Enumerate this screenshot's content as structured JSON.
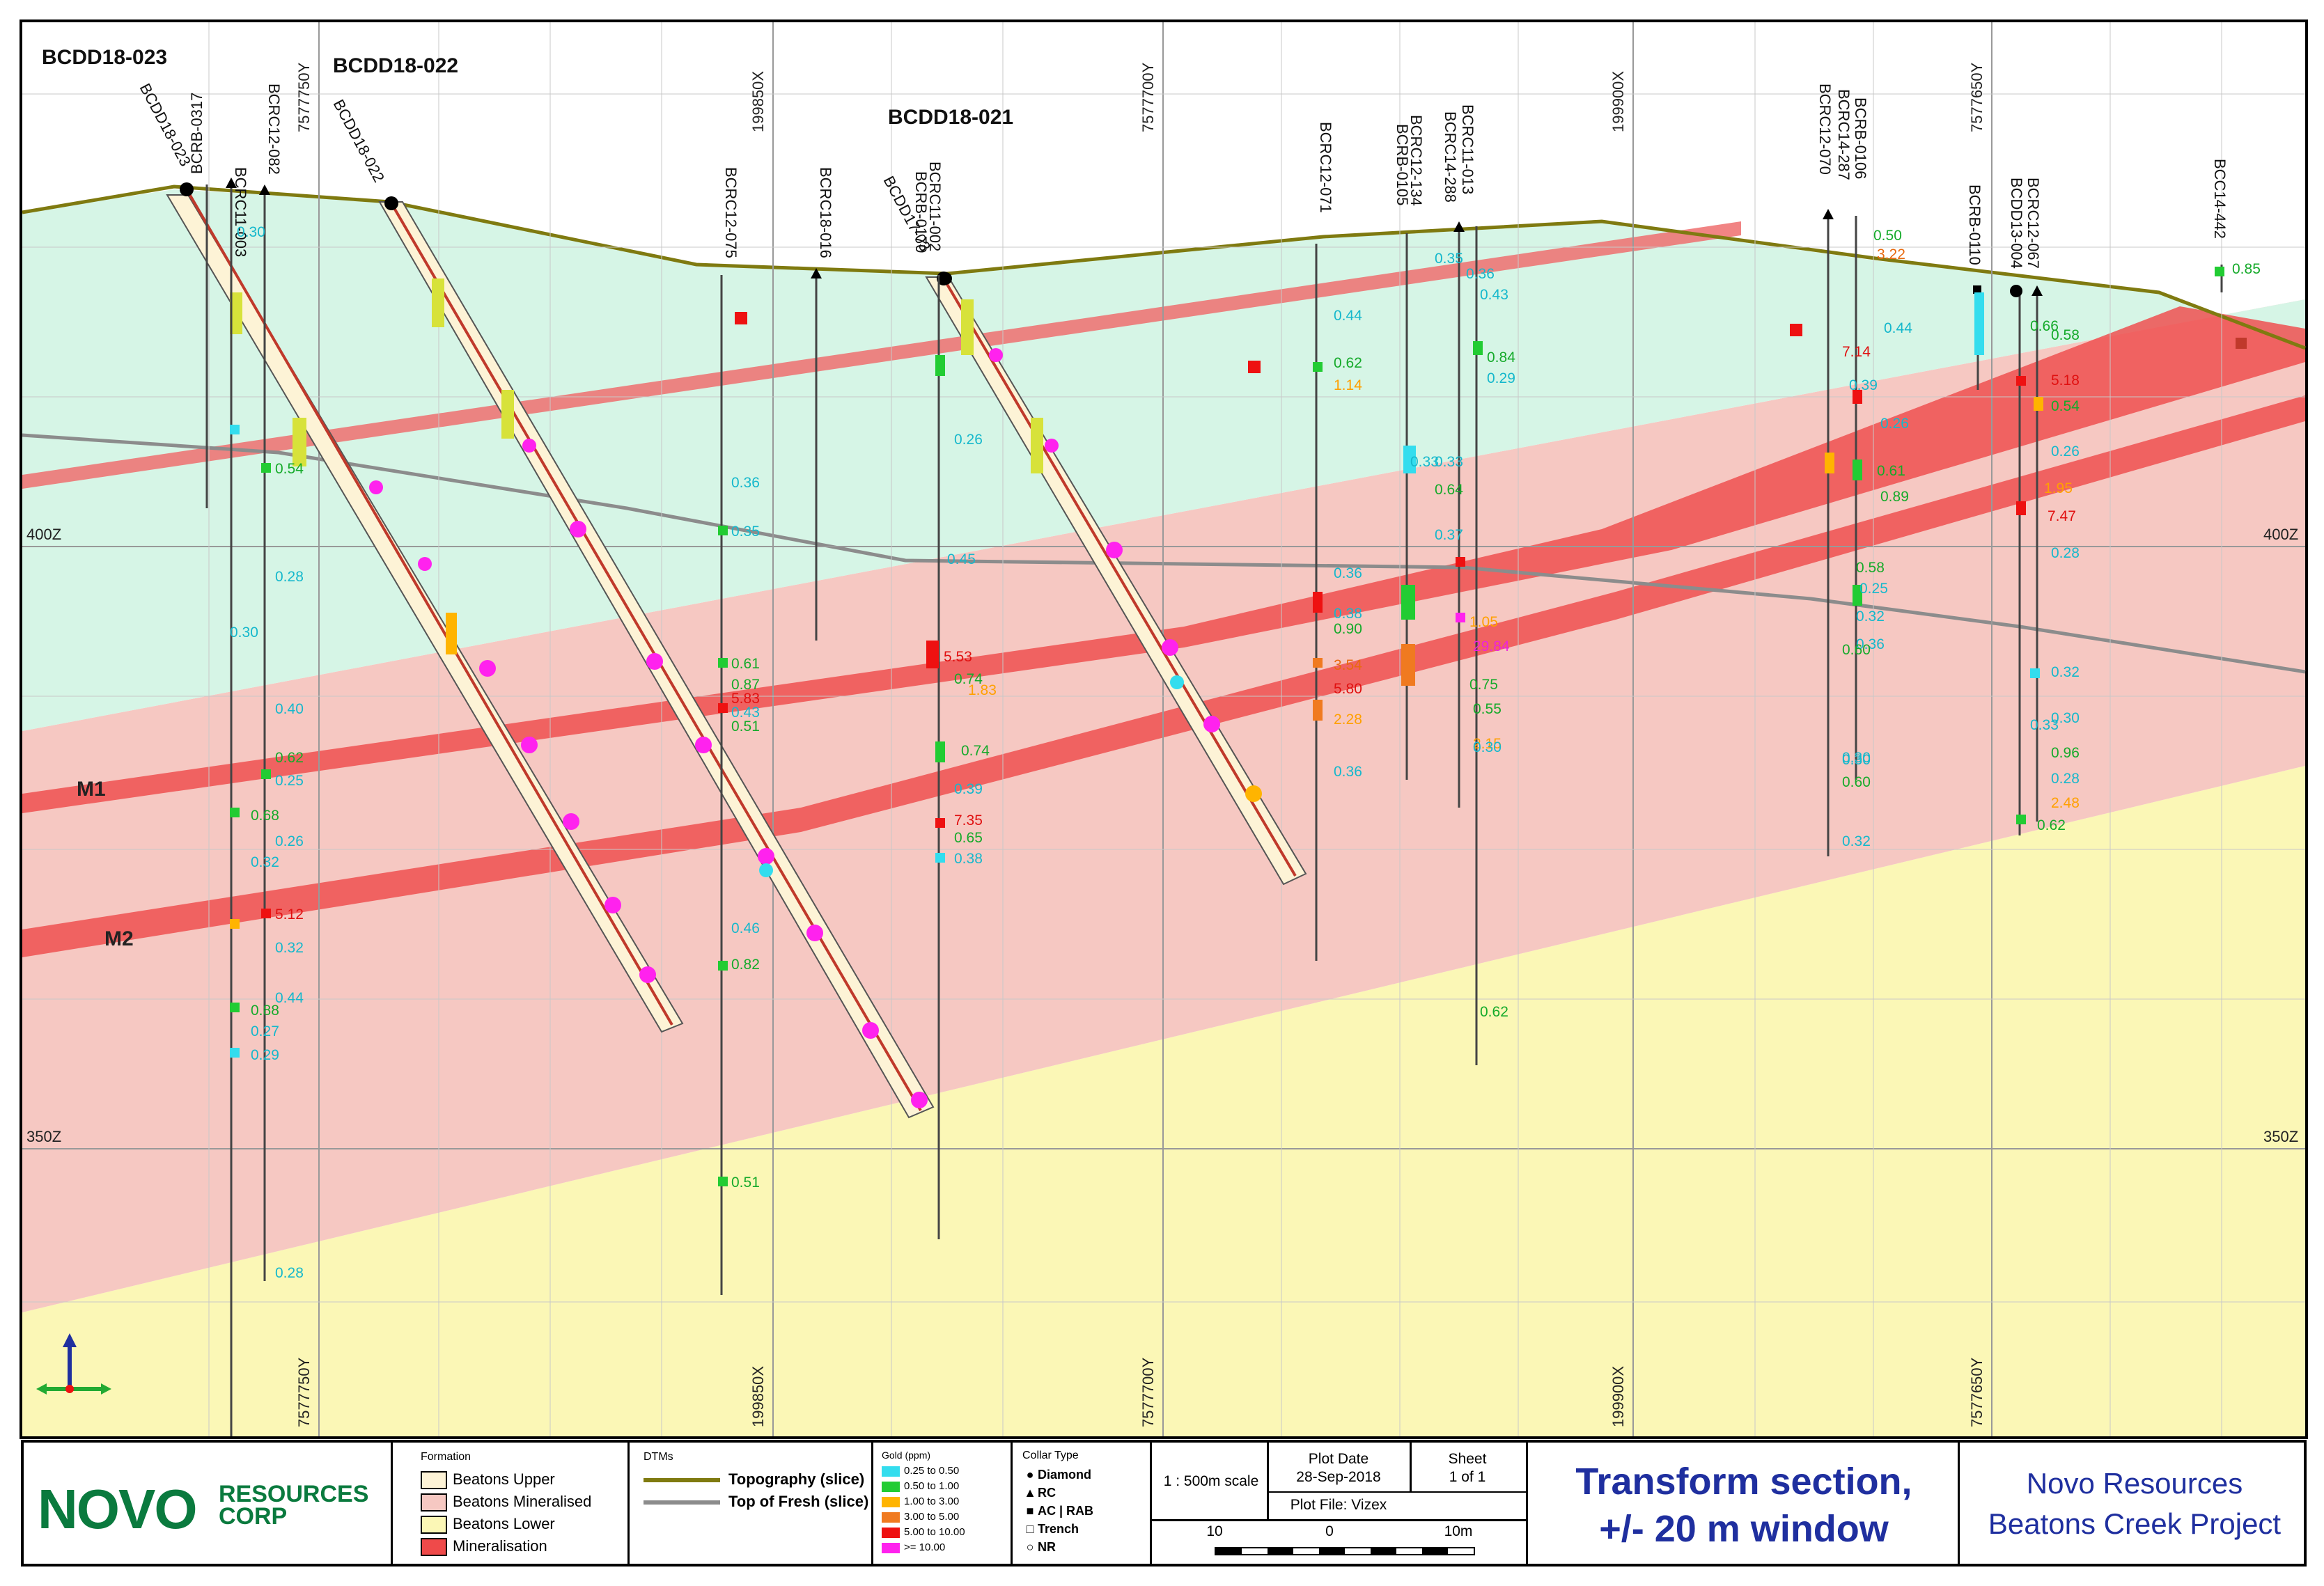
{
  "holes": {
    "main": [
      "BCDD18-023",
      "BCDD18-022",
      "BCDD18-021"
    ],
    "vertical": [
      "BCRB-0317",
      "BCRC11-003",
      "BCRC12-082",
      "BCRC12-075",
      "BCRC18-016",
      "BCRC11-002",
      "BCRB-0170",
      "BCDD17-03",
      "BCRC12-071",
      "BCRC12-134",
      "BCRB-0105",
      "BCRC14-288",
      "BCRC11-013",
      "BCRC12-070",
      "BCRC14-287",
      "BCRB-0106",
      "BCRB-0110",
      "BCDD13-004",
      "BCRC12-067",
      "BCC14-442"
    ]
  },
  "grid": {
    "top_labels": [
      "7577750Y",
      "199850X",
      "7577700Y",
      "199900X",
      "7577650Y"
    ],
    "bottom_labels": [
      "7577750Y",
      "199850X",
      "7577700Y",
      "199900X",
      "7577650Y"
    ],
    "elev_labels": [
      "400Z",
      "350Z"
    ]
  },
  "zones": {
    "m1": "M1",
    "m2": "M2"
  },
  "assays": [
    "0.30",
    "0.36",
    "0.35",
    "0.33",
    "0.61",
    "0.87",
    "5.83",
    "0.43",
    "0.51",
    "0.54",
    "0.28",
    "0.30",
    "0.40",
    "0.62",
    "0.25",
    "0.68",
    "0.26",
    "0.32",
    "5.12",
    "0.32",
    "0.44",
    "0.88",
    "0.27",
    "0.29",
    "0.28",
    "0.46",
    "0.82",
    "0.51",
    "0.26",
    "0.45",
    "5.53",
    "0.74",
    "1.83",
    "0.74",
    "0.39",
    "7.35",
    "0.65",
    "0.38",
    "0.44",
    "0.62",
    "1.14",
    "0.36",
    "0.38",
    "0.90",
    "3.54",
    "5.80",
    "2.28",
    "0.36",
    "0.35",
    "0.36",
    "0.43",
    "0.84",
    "0.29",
    "0.33",
    "0.64",
    "0.37",
    "1.05",
    "29.84",
    "0.75",
    "0.55",
    "2.15",
    "0.30",
    "0.62",
    "0.30",
    "0.60",
    "0.50",
    "3.22",
    "0.44",
    "7.14",
    "0.39",
    "0.26",
    "0.61",
    "0.89",
    "0.58",
    "0.25",
    "0.32",
    "0.36",
    "0.60",
    "0.30",
    "0.32",
    "0.66",
    "0.58",
    "5.18",
    "0.54",
    "0.26",
    "1.95",
    "7.47",
    "0.28",
    "0.32",
    "0.30",
    "0.33",
    "0.96",
    "0.28",
    "2.48",
    "0.62",
    "0.85"
  ],
  "footer": {
    "logo_mark": "NOVO",
    "logo_line1": "RESOURCES",
    "logo_line2": "CORP",
    "formation_label": "Formation",
    "formation": [
      {
        "label": "Beatons Upper",
        "color": "#fdf3d6"
      },
      {
        "label": "Beatons Mineralised",
        "color": "#f6c8c2"
      },
      {
        "label": "Beatons Lower",
        "color": "#fbf7b6"
      },
      {
        "label": "Mineralisation",
        "color": "#ef4a4a"
      }
    ],
    "dtms_label": "DTMs",
    "dtms": [
      {
        "label": "Topography (slice)",
        "color": "#7f7a10"
      },
      {
        "label": "Top of Fresh (slice)",
        "color": "#8c8c8c"
      }
    ],
    "gold_label": "Gold (ppm)",
    "gold": [
      {
        "label": "0.25 to 0.50",
        "color": "#33ddee"
      },
      {
        "label": "0.50 to 1.00",
        "color": "#22cc33"
      },
      {
        "label": "1.00 to 3.00",
        "color": "#ffb400"
      },
      {
        "label": "3.00 to 5.00",
        "color": "#f07a20"
      },
      {
        "label": "5.00 to 10.00",
        "color": "#ee1111"
      },
      {
        "label": ">= 10.00",
        "color": "#ff22ee"
      }
    ],
    "collar_label": "Collar Type",
    "collar": [
      "Diamond",
      "RC",
      "AC | RAB",
      "Trench",
      "NR"
    ],
    "scale": "1 : 500m scale",
    "plot_date_label": "Plot Date",
    "plot_date": "28-Sep-2018",
    "sheet_label": "Sheet",
    "sheet": "1 of 1",
    "plot_file": "Plot File: Vizex",
    "scalebar": [
      "10",
      "0",
      "10m"
    ],
    "title_line1": "Transform section,",
    "title_line2": "+/- 20 m window",
    "project_line1": "Novo Resources",
    "project_line2": "Beatons Creek Project"
  }
}
